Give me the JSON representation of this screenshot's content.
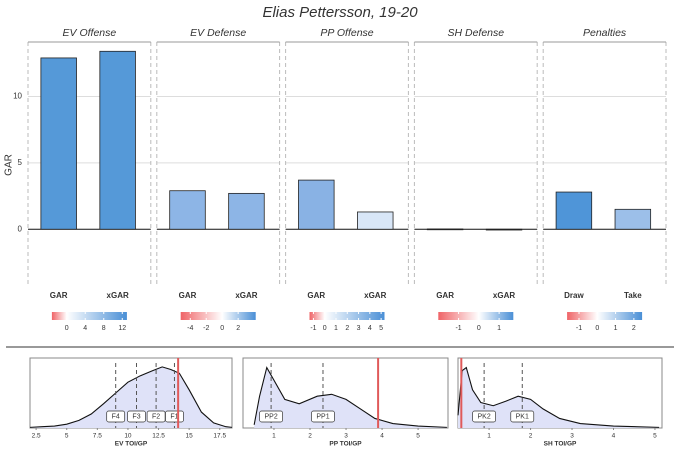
{
  "chart_data": [
    {
      "type": "bar-facets",
      "title": "Elias Pettersson, 19-20",
      "ylabel": "GAR",
      "ylim": [
        -4.2,
        14.1
      ],
      "yticks": [
        0,
        5,
        10
      ],
      "grid": true,
      "panels": [
        {
          "name": "EV Offense",
          "categories": [
            "GAR",
            "xGAR"
          ],
          "values": [
            12.9,
            13.4
          ],
          "colors": [
            "#5599d8",
            "#5599d8"
          ],
          "colorbar": {
            "lim": [
              -3.2,
              13
            ],
            "ticks": [
              0,
              4,
              8,
              12
            ]
          }
        },
        {
          "name": "EV Defense",
          "categories": [
            "GAR",
            "xGAR"
          ],
          "values": [
            2.9,
            2.7
          ],
          "colors": [
            "#8db5e6",
            "#8db5e6"
          ],
          "colorbar": {
            "lim": [
              -5.2,
              4.2
            ],
            "ticks": [
              -4,
              -2,
              0,
              2
            ]
          }
        },
        {
          "name": "PP Offense",
          "categories": [
            "GAR",
            "xGAR"
          ],
          "values": [
            3.7,
            1.3
          ],
          "colors": [
            "#89b2e4",
            "#d8e6f7"
          ],
          "colorbar": {
            "lim": [
              -1.35,
              5.3
            ],
            "ticks": [
              -1,
              0,
              1,
              2,
              3,
              4,
              5
            ]
          }
        },
        {
          "name": "SH Defense",
          "categories": [
            "GAR",
            "xGAR"
          ],
          "values": [
            0.02,
            -0.05
          ],
          "colors": [
            "#f4f4f4",
            "#f7efef"
          ],
          "colorbar": {
            "lim": [
              -2,
              1.7
            ],
            "ticks": [
              -1,
              0,
              1
            ]
          }
        },
        {
          "name": "Penalties",
          "categories": [
            "Draw",
            "Take"
          ],
          "values": [
            2.8,
            1.5
          ],
          "colors": [
            "#4f95d8",
            "#9cbfe9"
          ],
          "colorbar": {
            "lim": [
              -1.65,
              2.45
            ],
            "ticks": [
              -1,
              0,
              1,
              2
            ]
          }
        }
      ]
    },
    {
      "type": "density",
      "xlabel": "EV TOI/GP",
      "xlim": [
        2.0,
        18.5
      ],
      "xticks": [
        2.5,
        5.0,
        7.5,
        10.0,
        12.5,
        15.0,
        17.5
      ],
      "ylim": [
        0,
        1.1
      ],
      "highlight": 14.1,
      "x": [
        2.0,
        3.0,
        4.0,
        5.0,
        6.0,
        7.0,
        8.0,
        9.0,
        10.0,
        11.0,
        12.0,
        12.8,
        13.5,
        14.2,
        15.0,
        16.0,
        17.0,
        18.0,
        18.5
      ],
      "values": [
        0.01,
        0.02,
        0.03,
        0.06,
        0.12,
        0.22,
        0.38,
        0.55,
        0.72,
        0.82,
        0.9,
        0.96,
        0.92,
        0.86,
        0.6,
        0.25,
        0.08,
        0.02,
        0.01
      ],
      "markers": [
        {
          "label": "F4",
          "value": 9.0
        },
        {
          "label": "F3",
          "value": 10.7
        },
        {
          "label": "F2",
          "value": 12.3
        },
        {
          "label": "F1",
          "value": 13.8
        }
      ]
    },
    {
      "type": "density",
      "xlabel": "PP TOI/GP",
      "xlim": [
        0.14,
        5.83
      ],
      "xticks": [
        1,
        2,
        3,
        4,
        5
      ],
      "ylim": [
        0,
        1.1
      ],
      "highlight": 3.89,
      "x": [
        0.45,
        0.6,
        0.8,
        1.0,
        1.3,
        1.7,
        2.2,
        2.6,
        3.0,
        3.4,
        3.8,
        4.3,
        5.0,
        5.8
      ],
      "values": [
        0.05,
        0.5,
        0.95,
        0.75,
        0.45,
        0.38,
        0.5,
        0.53,
        0.45,
        0.3,
        0.15,
        0.07,
        0.03,
        0.01
      ],
      "markers": [
        {
          "label": "PP2",
          "value": 0.92
        },
        {
          "label": "PP1",
          "value": 2.36
        }
      ]
    },
    {
      "type": "density",
      "xlabel": "SH TOI/GP",
      "xlim": [
        0.25,
        5.17
      ],
      "xticks": [
        1,
        2,
        3,
        4,
        5
      ],
      "ylim": [
        0,
        1.1
      ],
      "highlight": 0.33,
      "x": [
        0.25,
        0.35,
        0.45,
        0.6,
        0.8,
        1.1,
        1.4,
        1.7,
        2.0,
        2.3,
        2.7,
        3.2,
        4.0,
        5.1
      ],
      "values": [
        0.2,
        0.9,
        0.95,
        0.6,
        0.4,
        0.35,
        0.42,
        0.5,
        0.45,
        0.3,
        0.15,
        0.07,
        0.03,
        0.01
      ],
      "markers": [
        {
          "label": "PK2",
          "value": 0.88
        },
        {
          "label": "PK1",
          "value": 1.8
        }
      ]
    }
  ]
}
